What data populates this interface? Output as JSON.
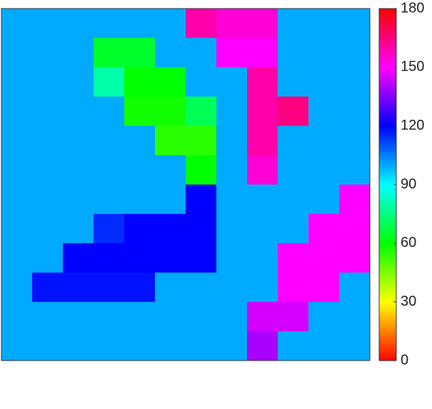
{
  "chart_data": {
    "type": "heatmap",
    "colormap": "hsv",
    "clim": [
      0,
      180
    ],
    "cticks": [
      0,
      30,
      60,
      90,
      120,
      150,
      180
    ],
    "z": [
      [
        100,
        100,
        100,
        100,
        100,
        100,
        160,
        155,
        155,
        100,
        100,
        100
      ],
      [
        100,
        100,
        100,
        65,
        65,
        100,
        100,
        150,
        150,
        100,
        100,
        100
      ],
      [
        100,
        100,
        100,
        80,
        60,
        60,
        100,
        100,
        160,
        100,
        100,
        100
      ],
      [
        100,
        100,
        100,
        100,
        58,
        58,
        70,
        100,
        160,
        165,
        100,
        100
      ],
      [
        100,
        100,
        100,
        100,
        100,
        55,
        55,
        100,
        160,
        100,
        100,
        100
      ],
      [
        100,
        100,
        100,
        100,
        100,
        100,
        60,
        100,
        155,
        100,
        100,
        100
      ],
      [
        100,
        100,
        100,
        100,
        100,
        100,
        120,
        100,
        100,
        100,
        100,
        150
      ],
      [
        100,
        100,
        100,
        115,
        120,
        120,
        120,
        100,
        100,
        100,
        150,
        150
      ],
      [
        100,
        100,
        120,
        120,
        120,
        120,
        120,
        100,
        100,
        150,
        150,
        150
      ],
      [
        100,
        118,
        118,
        118,
        118,
        100,
        100,
        100,
        100,
        150,
        150,
        100
      ],
      [
        100,
        100,
        100,
        100,
        100,
        100,
        100,
        100,
        145,
        145,
        100,
        100
      ],
      [
        100,
        100,
        100,
        100,
        100,
        100,
        100,
        100,
        140,
        100,
        100,
        100
      ]
    ]
  }
}
